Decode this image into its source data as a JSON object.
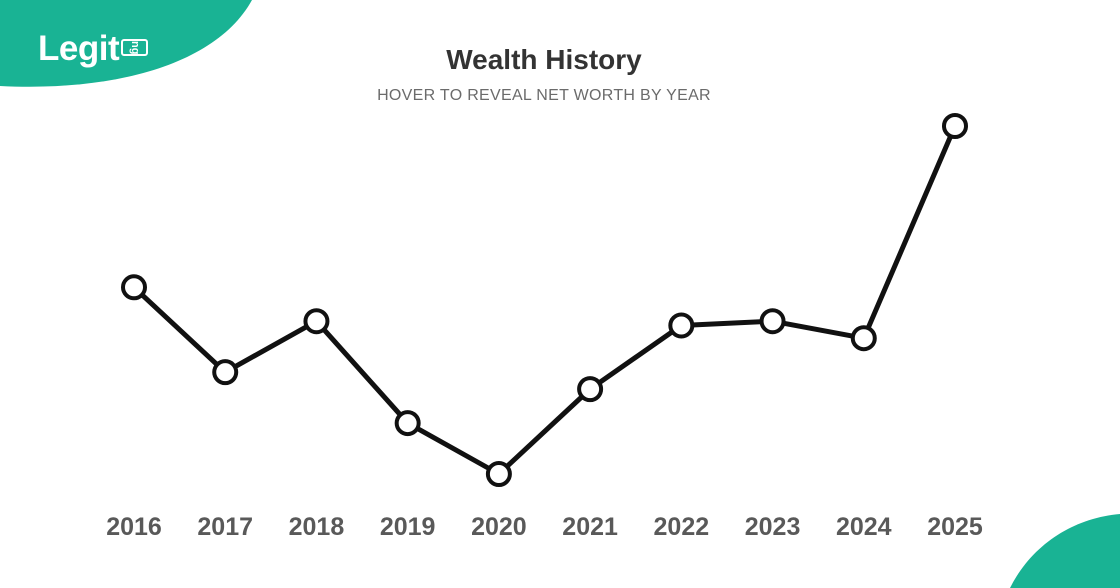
{
  "brand": {
    "logo_text": "Legit",
    "logo_tld": "ng",
    "accent_color": "#19b394"
  },
  "chart_data": {
    "type": "line",
    "title": "Wealth History",
    "subtitle": "HOVER TO REVEAL NET WORTH BY YEAR",
    "xlabel": "",
    "ylabel": "",
    "categories": [
      "2016",
      "2017",
      "2018",
      "2019",
      "2020",
      "2021",
      "2022",
      "2023",
      "2024",
      "2025"
    ],
    "series": [
      {
        "values": [
          62,
          42,
          54,
          30,
          18,
          38,
          53,
          54,
          50,
          100
        ],
        "color": "#111111"
      }
    ],
    "ylim": [
      0,
      110
    ],
    "grid": false,
    "y_axis_shown": false,
    "legend": "none",
    "marker": "hollow-circle"
  }
}
